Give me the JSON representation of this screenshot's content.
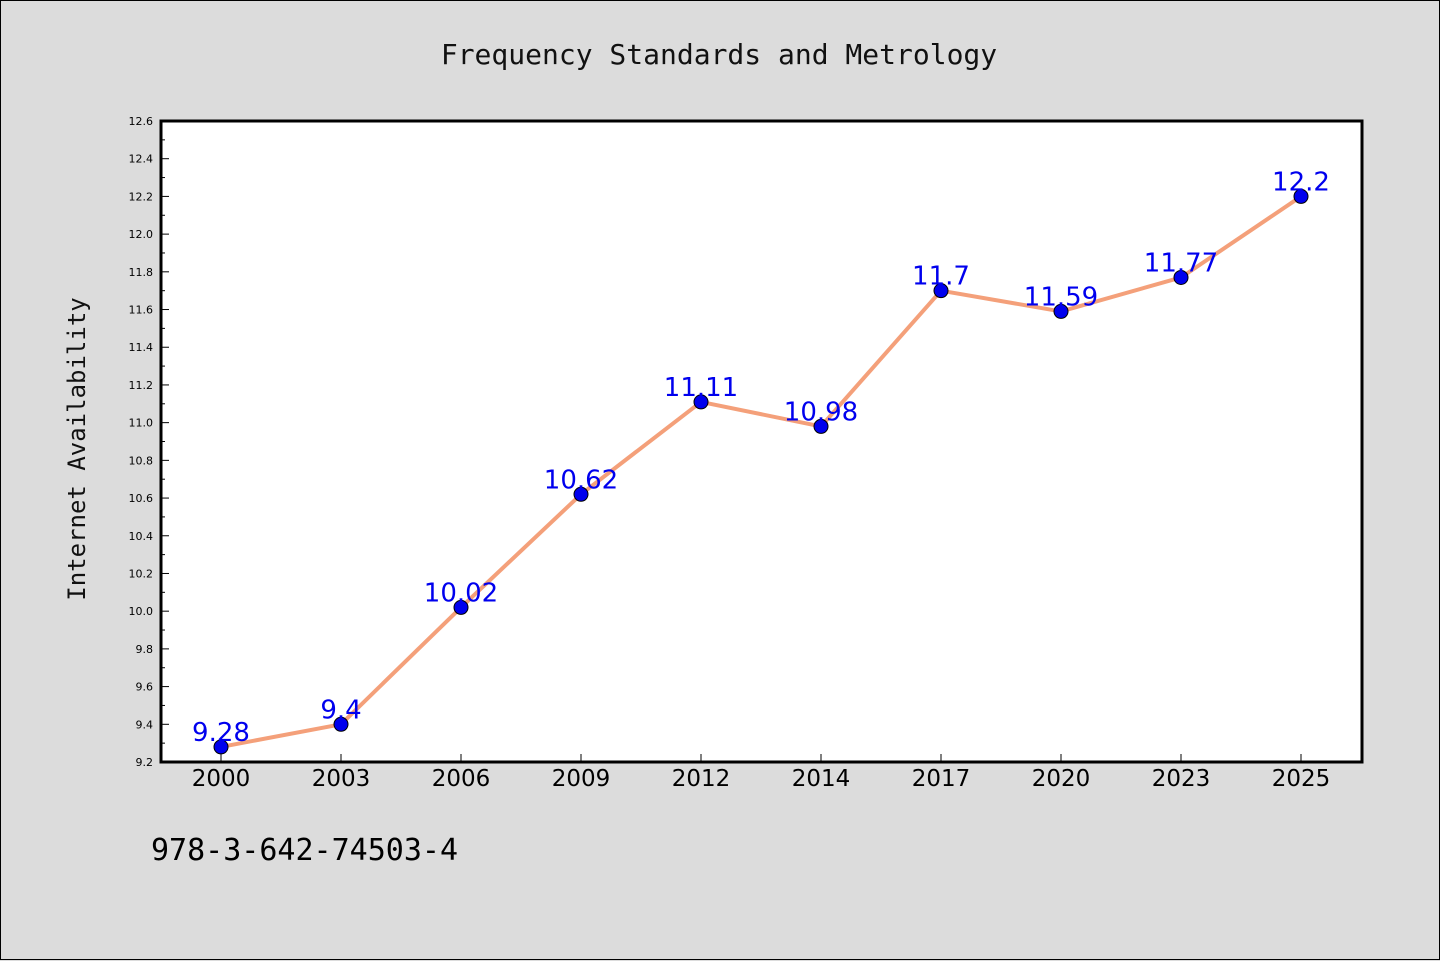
{
  "chart_data": {
    "type": "line",
    "title": "Frequency Standards and Metrology",
    "xlabel": "",
    "ylabel": "Internet Availability",
    "categories": [
      "2000",
      "2003",
      "2006",
      "2009",
      "2012",
      "2014",
      "2017",
      "2020",
      "2023",
      "2025"
    ],
    "series": [
      {
        "values": [
          9.28,
          9.4,
          10.02,
          10.62,
          11.11,
          10.98,
          11.7,
          11.59,
          11.77,
          12.2
        ],
        "data_labels": [
          "9.28",
          "9.4",
          "10.02",
          "10.62",
          "11.11",
          "10.98",
          "11.7",
          "11.59",
          "11.77",
          "12.2"
        ],
        "line_color": "#f4a07a",
        "marker_color": "#0000ee",
        "label_color": "#0000ee"
      }
    ],
    "ylim": [
      9.2,
      12.6
    ],
    "yticks": [
      "9.2",
      "9.4",
      "9.6",
      "9.8",
      "10.0",
      "10.2",
      "10.4",
      "10.6",
      "10.8",
      "11.0",
      "11.2",
      "11.4",
      "11.6",
      "11.8",
      "12.0",
      "12.2",
      "12.4",
      "12.6"
    ],
    "grid": false,
    "legend": "none"
  },
  "footer": {
    "code": "978-3-642-74503-4"
  },
  "colors": {
    "background": "#dcdcdc",
    "plot_background": "#ffffff"
  }
}
